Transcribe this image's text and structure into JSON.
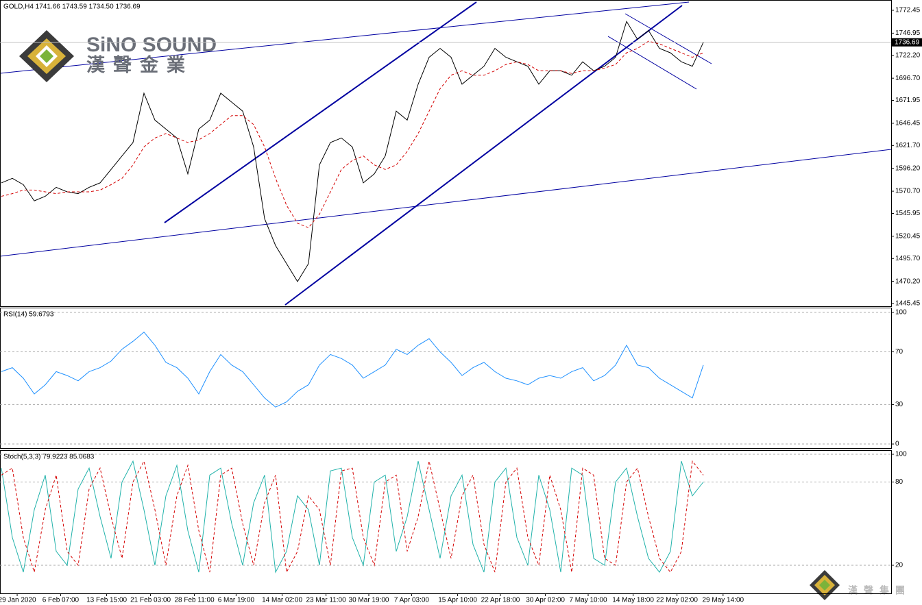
{
  "chart_data": [
    {
      "type": "line",
      "title": "GOLD,H4  1741.66 1743.59 1734.50 1736.69",
      "series": [
        {
          "color": "#000000",
          "values": [
            1580,
            1585,
            1578,
            1560,
            1565,
            1575,
            1570,
            1568,
            1575,
            1580,
            1595,
            1610,
            1625,
            1680,
            1650,
            1640,
            1630,
            1590,
            1640,
            1650,
            1680,
            1670,
            1660,
            1620,
            1540,
            1510,
            1490,
            1470,
            1490,
            1600,
            1625,
            1630,
            1620,
            1580,
            1590,
            1610,
            1660,
            1650,
            1690,
            1720,
            1730,
            1720,
            1690,
            1700,
            1710,
            1730,
            1720,
            1715,
            1710,
            1690,
            1705,
            1705,
            1700,
            1715,
            1705,
            1710,
            1720,
            1760,
            1740,
            1750,
            1730,
            1725,
            1715,
            1710,
            1736.69
          ]
        },
        {
          "color": "#d40000",
          "dash": true,
          "values": [
            1565,
            1568,
            1572,
            1572,
            1570,
            1568,
            1570,
            1570,
            1570,
            1572,
            1578,
            1585,
            1600,
            1620,
            1630,
            1635,
            1630,
            1625,
            1628,
            1635,
            1645,
            1655,
            1655,
            1645,
            1620,
            1585,
            1555,
            1535,
            1530,
            1545,
            1570,
            1595,
            1605,
            1610,
            1600,
            1595,
            1600,
            1615,
            1635,
            1660,
            1685,
            1700,
            1705,
            1700,
            1700,
            1705,
            1712,
            1715,
            1712,
            1705,
            1705,
            1705,
            1702,
            1705,
            1705,
            1708,
            1712,
            1725,
            1730,
            1738,
            1735,
            1730,
            1725,
            1720,
            1725
          ]
        }
      ],
      "last_price": 1736.69,
      "ylim": [
        1442.4,
        1783.9
      ],
      "yticks": [
        1772.45,
        1746.95,
        {
          "value": 1722.2,
          "label": "1722.20"
        },
        {
          "value": 1696.7,
          "label": "1696.70"
        },
        1671.95,
        1646.45,
        {
          "value": 1621.7,
          "label": "1621.70"
        },
        {
          "value": 1596.2,
          "label": "1596.20"
        },
        {
          "value": 1570.7,
          "label": "1570.70"
        },
        1545.95,
        1520.45,
        {
          "value": 1495.7,
          "label": "1495.70"
        },
        {
          "value": 1470.2,
          "label": "1470.20"
        },
        1445.45
      ],
      "grid": false,
      "xlim": [
        -0.125,
        81.125
      ],
      "xticks": [
        {
          "value": 1.44,
          "label": "29 Jan 2020"
        },
        {
          "value": 5.4,
          "label": "6 Feb 07:00"
        },
        {
          "value": 9.6,
          "label": "13 Feb 15:00"
        },
        {
          "value": 13.6,
          "label": "21 Feb 03:00"
        },
        {
          "value": 17.6,
          "label": "28 Feb 11:00"
        },
        {
          "value": 21.4,
          "label": "6 Mar 19:00"
        },
        {
          "value": 25.6,
          "label": "14 Mar 02:00"
        },
        {
          "value": 29.6,
          "label": "23 Mar 11:00"
        },
        {
          "value": 33.5,
          "label": "30 Mar 19:00"
        },
        {
          "value": 37.4,
          "label": "7 Apr 03:00"
        },
        {
          "value": 41.6,
          "label": "15 Apr 10:00"
        },
        {
          "value": 45.5,
          "label": "22 Apr 18:00"
        },
        {
          "value": 49.6,
          "label": "30 Apr 02:00"
        },
        {
          "value": 53.5,
          "label": "7 May 10:00"
        },
        {
          "value": 57.6,
          "label": "14 May 18:00"
        },
        {
          "value": 61.6,
          "label": "22 May 02:00"
        },
        {
          "value": 65.8,
          "label": "29 May 14:00"
        }
      ]
    },
    {
      "type": "line",
      "title": "RSI(14) 59.6793",
      "series": [
        {
          "color": "#1e90ff",
          "values": [
            55,
            58,
            50,
            38,
            45,
            55,
            52,
            48,
            55,
            58,
            63,
            72,
            78,
            85,
            75,
            62,
            58,
            50,
            38,
            55,
            68,
            60,
            55,
            45,
            35,
            28,
            32,
            40,
            45,
            60,
            68,
            65,
            60,
            50,
            55,
            60,
            72,
            68,
            75,
            80,
            70,
            62,
            52,
            58,
            62,
            55,
            50,
            48,
            45,
            50,
            52,
            50,
            55,
            58,
            48,
            52,
            60,
            75,
            60,
            58,
            50,
            45,
            40,
            35,
            60
          ]
        }
      ],
      "ylim": [
        -3.1,
        103.6
      ],
      "yticks": [
        100,
        70,
        30,
        0
      ],
      "grid": true
    },
    {
      "type": "line",
      "title": "Stoch(5,3,3) 79.9223 85.0683",
      "series": [
        {
          "color": "#20b2aa",
          "values": [
            90,
            40,
            15,
            60,
            85,
            30,
            20,
            75,
            90,
            55,
            25,
            80,
            95,
            60,
            20,
            70,
            92,
            45,
            15,
            85,
            90,
            50,
            20,
            65,
            85,
            15,
            30,
            70,
            60,
            20,
            88,
            90,
            40,
            20,
            80,
            85,
            30,
            55,
            95,
            60,
            25,
            70,
            85,
            35,
            15,
            80,
            90,
            40,
            20,
            85,
            60,
            15,
            90,
            85,
            25,
            20,
            80,
            90,
            55,
            25,
            15,
            30,
            95,
            70,
            80
          ]
        },
        {
          "color": "#d40000",
          "dash": true,
          "values": [
            85,
            90,
            40,
            15,
            60,
            85,
            30,
            20,
            75,
            90,
            55,
            25,
            80,
            95,
            60,
            20,
            70,
            92,
            45,
            15,
            85,
            90,
            50,
            20,
            65,
            85,
            15,
            30,
            70,
            60,
            20,
            88,
            90,
            40,
            20,
            80,
            85,
            30,
            55,
            95,
            60,
            25,
            70,
            85,
            35,
            15,
            80,
            90,
            40,
            20,
            85,
            60,
            15,
            90,
            85,
            25,
            20,
            80,
            90,
            55,
            25,
            15,
            30,
            95,
            85
          ]
        }
      ],
      "ylim": [
        -0.25,
        102.96
      ],
      "yticks": [
        100,
        80,
        20
      ],
      "grid": true
    }
  ],
  "logo": {
    "name": "SiNO SOUND",
    "name_cn": "漢聲金業",
    "footer_cn": "漢聲集團"
  }
}
